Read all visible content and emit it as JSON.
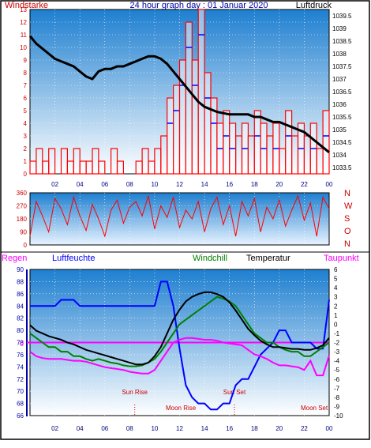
{
  "colors": {
    "frame": "#000000",
    "sky_top": "#1e7fd0",
    "sky_bottom": "#ffffff",
    "wind": "#ff0000",
    "gust": "#ff0000",
    "wind_dir": "#ff0000",
    "pressure": "#000000",
    "humidity": "#0000ff",
    "windchill": "#008000",
    "temperature": "#000000",
    "dewpoint": "#ff00ff",
    "rain_axis": "#0000aa",
    "sun_moon": "#cc0000"
  },
  "chart_data": [
    {
      "type": "bar",
      "title": "24 hour graph day : 01 Januar 2020",
      "y_left_label": "Windstarke",
      "y_right_label": "Luftdruck",
      "x_ticks": [
        "02",
        "04",
        "06",
        "08",
        "10",
        "12",
        "14",
        "16",
        "18",
        "20",
        "22",
        "00"
      ],
      "y_left_ticks": [
        "0",
        "1",
        "2",
        "3",
        "4",
        "5",
        "6",
        "7",
        "8",
        "9",
        "10",
        "11",
        "12",
        "13"
      ],
      "y_left_range": [
        0,
        13
      ],
      "y_right_ticks": [
        "1033.5",
        "1034",
        "1034.5",
        "1035",
        "1035.5",
        "1036",
        "1036.5",
        "1037",
        "1037.5",
        "1038",
        "1038.5",
        "1039",
        "1039.5"
      ],
      "y_right_range": [
        1033.25,
        1039.75
      ],
      "x_range": [
        0,
        24
      ],
      "series": [
        {
          "name": "Windstarke",
          "x": [
            0.0,
            0.5,
            1.0,
            1.5,
            2.0,
            2.5,
            3.0,
            3.5,
            4.0,
            4.5,
            5.0,
            5.5,
            6.0,
            6.5,
            7.0,
            7.5,
            8.0,
            8.5,
            9.0,
            9.5,
            10.0,
            10.5,
            11.0,
            11.5,
            12.0,
            12.5,
            13.0,
            13.5,
            14.0,
            14.5,
            15.0,
            15.5,
            16.0,
            16.5,
            17.0,
            17.5,
            18.0,
            18.5,
            19.0,
            19.5,
            20.0,
            20.5,
            21.0,
            21.5,
            22.0,
            22.5,
            23.0,
            23.5
          ],
          "values": [
            1,
            2,
            1,
            2,
            0,
            2,
            1,
            2,
            1,
            1,
            2,
            1,
            0,
            2,
            1,
            0,
            0,
            1,
            2,
            1,
            2,
            3,
            6,
            7,
            9,
            12,
            9,
            13,
            8,
            6,
            4,
            5,
            4,
            3,
            4,
            3,
            5,
            4,
            3,
            4,
            2,
            5,
            3,
            4,
            3,
            4,
            2,
            5
          ]
        },
        {
          "name": "Luftdruck",
          "x": [
            0,
            0.5,
            1,
            1.5,
            2,
            2.5,
            3,
            3.5,
            4,
            4.5,
            5,
            5.5,
            6,
            6.5,
            7,
            7.5,
            8,
            8.5,
            9,
            9.5,
            10,
            10.5,
            11,
            11.5,
            12,
            12.5,
            13,
            13.5,
            14,
            14.5,
            15,
            15.5,
            16,
            16.5,
            17,
            17.5,
            18,
            18.5,
            19,
            19.5,
            20,
            20.5,
            21,
            21.5,
            22,
            22.5,
            23,
            23.5,
            24
          ],
          "values": [
            1038.7,
            1038.4,
            1038.2,
            1038.0,
            1037.8,
            1037.7,
            1037.6,
            1037.5,
            1037.3,
            1037.1,
            1037.0,
            1037.3,
            1037.4,
            1037.4,
            1037.5,
            1037.5,
            1037.6,
            1037.7,
            1037.8,
            1037.9,
            1037.9,
            1037.8,
            1037.6,
            1037.3,
            1037.0,
            1036.7,
            1036.4,
            1036.1,
            1035.9,
            1035.8,
            1035.7,
            1035.65,
            1035.6,
            1035.6,
            1035.6,
            1035.6,
            1035.5,
            1035.5,
            1035.4,
            1035.3,
            1035.3,
            1035.2,
            1035.1,
            1035.0,
            1034.9,
            1034.7,
            1034.5,
            1034.3,
            1034.1
          ]
        }
      ]
    },
    {
      "type": "line",
      "y_left_ticks": [
        "0",
        "90",
        "180",
        "270",
        "360"
      ],
      "y_range": [
        0,
        360
      ],
      "y_right_ticks": [
        "N",
        "W",
        "S",
        "O",
        "N"
      ],
      "x_ticks": [],
      "x_range": [
        0,
        24
      ],
      "series": [
        {
          "name": "Windrichtung",
          "x": [
            0,
            0.5,
            1,
            1.5,
            2,
            2.5,
            3,
            3.5,
            4,
            4.5,
            5,
            5.5,
            6,
            6.5,
            7,
            7.5,
            8,
            8.5,
            9,
            9.5,
            10,
            10.5,
            11,
            11.5,
            12,
            12.5,
            13,
            13.5,
            14,
            14.5,
            15,
            15.5,
            16,
            16.5,
            17,
            17.5,
            18,
            18.5,
            19,
            19.5,
            20,
            20.5,
            21,
            21.5,
            22,
            22.5,
            23,
            23.5,
            24
          ],
          "values": [
            60,
            300,
            200,
            90,
            320,
            250,
            140,
            330,
            200,
            100,
            280,
            180,
            60,
            240,
            310,
            150,
            260,
            300,
            200,
            340,
            110,
            270,
            190,
            330,
            120,
            240,
            180,
            300,
            90,
            250,
            330,
            140,
            270,
            60,
            300,
            200,
            320,
            90,
            260,
            180,
            310,
            130,
            240,
            340,
            170,
            290,
            60,
            330,
            250
          ]
        }
      ]
    },
    {
      "type": "line",
      "legend": [
        "Regen",
        "Luftfeuchte",
        "Windchill",
        "Temperatur",
        "Taupunkt"
      ],
      "y_left_ticks": [
        "66",
        "68",
        "70",
        "72",
        "74",
        "76",
        "78",
        "80",
        "82",
        "84",
        "86",
        "88",
        "90"
      ],
      "y_left_range": [
        66,
        90
      ],
      "y_right_ticks": [
        "-10",
        "-9",
        "-8",
        "-7",
        "-6",
        "-5",
        "-4",
        "-3",
        "-2",
        "-1",
        "0",
        "1",
        "2",
        "3",
        "4",
        "5",
        "6"
      ],
      "y_right_range": [
        -10,
        6
      ],
      "rain_zero_label": "0",
      "x_ticks": [
        "02",
        "04",
        "06",
        "08",
        "10",
        "12",
        "14",
        "16",
        "18",
        "20",
        "22",
        "00"
      ],
      "x_range": [
        0,
        24
      ],
      "annotations": [
        {
          "text": "Sun Rise",
          "x": 8.4
        },
        {
          "text": "Sun Set",
          "x": 16.4
        },
        {
          "text": "Moon Rise",
          "x": 12.1
        },
        {
          "text": "Moon Set",
          "x": 22.8
        }
      ],
      "series": [
        {
          "name": "Luftfeuchte",
          "x": [
            0,
            0.5,
            1,
            1.5,
            2,
            2.5,
            3,
            3.5,
            4,
            4.5,
            5,
            5.5,
            6,
            6.5,
            7,
            7.5,
            8,
            8.5,
            9,
            9.5,
            10,
            10.5,
            11,
            11.5,
            12,
            12.5,
            13,
            13.5,
            14,
            14.5,
            15,
            15.5,
            16,
            16.5,
            17,
            17.5,
            18,
            18.5,
            19,
            19.5,
            20,
            20.5,
            21,
            21.5,
            22,
            22.5,
            23,
            23.5,
            24
          ],
          "values": [
            84,
            84,
            84,
            84,
            84,
            85,
            85,
            85,
            84,
            84,
            84,
            84,
            84,
            84,
            84,
            84,
            84,
            84,
            84,
            84,
            84,
            88,
            88,
            84,
            77,
            71,
            69,
            68,
            68,
            67,
            67,
            68,
            68,
            71,
            72,
            72,
            74,
            76,
            77,
            78,
            80,
            80,
            78,
            78,
            78,
            78,
            77,
            77,
            85
          ]
        },
        {
          "name": "Windchill",
          "x": [
            0,
            0.5,
            1,
            1.5,
            2,
            2.5,
            3,
            3.5,
            4,
            4.5,
            5,
            5.5,
            6,
            6.5,
            7,
            7.5,
            8,
            8.5,
            9,
            9.5,
            10,
            10.5,
            11,
            11.5,
            12,
            12.5,
            13,
            13.5,
            14,
            14.5,
            15,
            15.5,
            16,
            16.5,
            17,
            17.5,
            18,
            18.5,
            19,
            19.5,
            20,
            20.5,
            21,
            21.5,
            22,
            22.5,
            23,
            23.5,
            24
          ],
          "values": [
            -1,
            -1.5,
            -2,
            -2.5,
            -2.5,
            -3,
            -3,
            -3.5,
            -3.5,
            -3.8,
            -4,
            -3.8,
            -4,
            -4.2,
            -4.3,
            -4.5,
            -4.6,
            -4.6,
            -4.5,
            -4.2,
            -3.8,
            -3,
            -2,
            -1,
            0,
            0.5,
            1,
            1.5,
            2,
            2.5,
            3,
            2.8,
            2.5,
            2,
            1,
            0,
            -1,
            -1.5,
            -2,
            -2,
            -2.5,
            -2.8,
            -3,
            -3,
            -3.5,
            -3.5,
            -3,
            -2.5,
            -2
          ]
        },
        {
          "name": "Temperatur",
          "x": [
            0,
            0.5,
            1,
            1.5,
            2,
            2.5,
            3,
            3.5,
            4,
            4.5,
            5,
            5.5,
            6,
            6.5,
            7,
            7.5,
            8,
            8.5,
            9,
            9.5,
            10,
            10.5,
            11,
            11.5,
            12,
            12.5,
            13,
            13.5,
            14,
            14.5,
            15,
            15.5,
            16,
            16.5,
            17,
            17.5,
            18,
            18.5,
            19,
            19.5,
            20,
            20.5,
            21,
            21.5,
            22,
            22.5,
            23,
            23.5,
            24
          ],
          "values": [
            -0.1,
            -0.7,
            -1,
            -1.3,
            -1.5,
            -1.7,
            -2,
            -2.2,
            -2.5,
            -2.8,
            -3,
            -3.2,
            -3.4,
            -3.6,
            -3.8,
            -4,
            -4.2,
            -4.4,
            -4.4,
            -4.2,
            -3.5,
            -2.5,
            -1,
            0.5,
            1.6,
            2.5,
            3,
            3.3,
            3.5,
            3.5,
            3.3,
            3,
            2.4,
            1.5,
            0.5,
            -0.5,
            -1.2,
            -1.8,
            -2.2,
            -2.5,
            -2.5,
            -2.6,
            -2.7,
            -2.7,
            -2.8,
            -2.8,
            -2.6,
            -2.3,
            -1.5
          ]
        },
        {
          "name": "Taupunkt",
          "x": [
            0,
            0.5,
            1,
            1.5,
            2,
            2.5,
            3,
            3.5,
            4,
            4.5,
            5,
            5.5,
            6,
            6.5,
            7,
            7.5,
            8,
            8.5,
            9,
            9.5,
            10,
            10.5,
            11,
            11.5,
            12,
            12.5,
            13,
            13.5,
            14,
            14.5,
            15,
            15.5,
            16,
            16.5,
            17,
            17.5,
            18,
            18.5,
            19,
            19.5,
            20,
            20.5,
            21,
            21.5,
            22,
            22.5,
            23,
            23.5,
            24
          ],
          "values": [
            -3,
            -3.5,
            -3.7,
            -3.8,
            -3.8,
            -3.8,
            -3.9,
            -4,
            -4,
            -4.1,
            -4.3,
            -4.5,
            -4.7,
            -4.8,
            -4.9,
            -5,
            -5.2,
            -5.3,
            -5.4,
            -5.4,
            -5,
            -4,
            -3,
            -2,
            -1.7,
            -1.5,
            -1.5,
            -1.6,
            -1.7,
            -1.7,
            -1.8,
            -2,
            -2.1,
            -2.2,
            -2.3,
            -2.8,
            -3.3,
            -3.5,
            -3.8,
            -4.2,
            -4.5,
            -4.5,
            -4.6,
            -4.7,
            -5,
            -4,
            -5.6,
            -5.6,
            -3.4
          ]
        },
        {
          "name": "Regen",
          "x": [
            0,
            24
          ],
          "values": [
            -2,
            -2
          ]
        }
      ]
    }
  ]
}
